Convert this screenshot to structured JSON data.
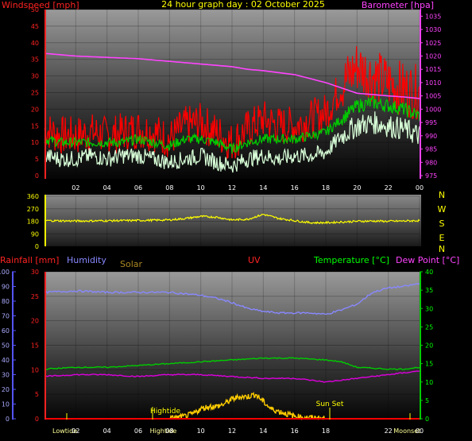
{
  "chart_data": [
    {
      "type": "line",
      "title": "24 hour graph day : 02 October 2025",
      "left_label": "Windspeed [mph]",
      "right_label": "Barometer [hpa]",
      "left_ticks": [
        "0",
        "5",
        "10",
        "15",
        "20",
        "25",
        "30",
        "35",
        "40",
        "45",
        "50"
      ],
      "right_ticks": [
        "975",
        "980",
        "985",
        "990",
        "995",
        "1000",
        "1005",
        "1010",
        "1015",
        "1020",
        "1025",
        "1030",
        "1035"
      ],
      "x_ticks": [
        "02",
        "04",
        "06",
        "08",
        "10",
        "12",
        "14",
        "16",
        "18",
        "20",
        "22",
        "00"
      ],
      "ylim_left": [
        0,
        50
      ],
      "ylim_right": [
        975,
        1037.5
      ],
      "series": [
        {
          "name": "Windspeed [mph]",
          "color": "#ff0000",
          "axis": "left",
          "hours": [
            0,
            1,
            2,
            3,
            4,
            5,
            6,
            7,
            8,
            9,
            10,
            11,
            12,
            13,
            14,
            15,
            16,
            17,
            18,
            19,
            20,
            21,
            22,
            23,
            24
          ],
          "values": [
            14,
            12,
            12,
            13,
            12,
            13,
            14,
            13,
            11,
            15,
            16,
            13,
            10,
            14,
            17,
            15,
            15,
            17,
            19,
            27,
            33,
            30,
            28,
            26,
            25
          ]
        },
        {
          "name": "Windspeed average",
          "color": "#00cc00",
          "axis": "left",
          "hours": [
            0,
            1,
            2,
            3,
            4,
            5,
            6,
            7,
            8,
            9,
            10,
            11,
            12,
            13,
            14,
            15,
            16,
            17,
            18,
            19,
            20,
            21,
            22,
            23,
            24
          ],
          "values": [
            11,
            10,
            10,
            10,
            10,
            10,
            11,
            10,
            9,
            11,
            11,
            10,
            8,
            10,
            11,
            11,
            11,
            12,
            13,
            17,
            21,
            22,
            21,
            20,
            18
          ]
        },
        {
          "name": "Wind gust low",
          "color": "#d8ffd8",
          "axis": "left",
          "hours": [
            0,
            1,
            2,
            3,
            4,
            5,
            6,
            7,
            8,
            9,
            10,
            11,
            12,
            13,
            14,
            15,
            16,
            17,
            18,
            19,
            20,
            21,
            22,
            23,
            24
          ],
          "values": [
            6,
            5,
            5,
            6,
            5,
            6,
            6,
            5,
            4,
            5,
            6,
            4,
            3,
            5,
            6,
            5,
            6,
            6,
            7,
            12,
            15,
            16,
            15,
            14,
            12
          ]
        },
        {
          "name": "Barometer [hpa]",
          "color": "#ff44ff",
          "axis": "right",
          "hours": [
            0,
            2,
            4,
            6,
            8,
            10,
            12,
            13,
            14,
            16,
            18,
            19,
            20,
            21,
            22,
            23,
            24
          ],
          "values": [
            1021,
            1020,
            1019.5,
            1019,
            1018,
            1017,
            1016,
            1015,
            1014.5,
            1013,
            1010,
            1008,
            1006,
            1005.5,
            1005,
            1004.6,
            1004
          ]
        }
      ]
    },
    {
      "type": "line",
      "title": "Wind direction",
      "left_ticks": [
        "0",
        "90",
        "180",
        "270",
        "360"
      ],
      "right_labels": [
        "N",
        "W",
        "S",
        "E",
        "N"
      ],
      "ylim": [
        0,
        360
      ],
      "series": [
        {
          "name": "Wind direction",
          "color": "#ffff00",
          "hours": [
            0,
            2,
            4,
            6,
            8,
            9,
            10,
            11,
            12,
            13,
            14,
            15,
            16,
            17,
            18,
            19,
            20,
            21,
            22,
            23,
            24
          ],
          "values": [
            185,
            182,
            184,
            186,
            190,
            200,
            215,
            210,
            190,
            195,
            230,
            200,
            185,
            170,
            170,
            175,
            180,
            182,
            180,
            182,
            185
          ]
        }
      ]
    },
    {
      "type": "line",
      "title": "",
      "labels": {
        "rainfall": "Rainfall [mm]",
        "humidity": "Humidity",
        "solar": "Solar",
        "uv": "UV",
        "temperature": "Temperature [°C]",
        "dewpoint": "Dew Point [°C]"
      },
      "humidity_ticks": [
        "0",
        "10",
        "20",
        "30",
        "40",
        "50",
        "60",
        "70",
        "80",
        "90",
        "100"
      ],
      "rain_ticks": [
        "0",
        "5",
        "10",
        "15",
        "20",
        "25",
        "30"
      ],
      "temp_ticks": [
        "0",
        "5",
        "10",
        "15",
        "20",
        "25",
        "30",
        "35",
        "40"
      ],
      "x_ticks": [
        "Lowtide",
        "02",
        "04",
        "06",
        "Hightide",
        "08",
        "10",
        "12",
        "14",
        "16",
        "18",
        "22",
        "Moonset",
        "00"
      ],
      "annotations": [
        "Hightide",
        "Sun Set"
      ],
      "series": [
        {
          "name": "Humidity",
          "color": "#8888ff",
          "axis": "humidity",
          "hours": [
            0,
            2,
            4,
            6,
            8,
            10,
            11,
            12,
            13,
            14,
            15,
            16,
            17,
            18,
            19,
            20,
            21,
            22,
            23,
            24
          ],
          "values": [
            86,
            87,
            86,
            86,
            86,
            84,
            82,
            79,
            75,
            73,
            72,
            72,
            72,
            71,
            74,
            78,
            86,
            89,
            90,
            92
          ]
        },
        {
          "name": "Temperature [°C]",
          "color": "#00cc00",
          "axis": "temp",
          "hours": [
            0,
            2,
            4,
            6,
            8,
            10,
            12,
            14,
            16,
            18,
            19,
            20,
            22,
            23,
            24
          ],
          "values": [
            13.5,
            14,
            14,
            14.5,
            15,
            15.5,
            16,
            16.5,
            16.5,
            16,
            15.5,
            14,
            13.5,
            13.5,
            14
          ]
        },
        {
          "name": "Dew Point [°C]",
          "color": "#dd00dd",
          "axis": "temp",
          "hours": [
            0,
            2,
            4,
            6,
            8,
            10,
            12,
            14,
            16,
            17,
            18,
            20,
            22,
            24
          ],
          "values": [
            11.5,
            12,
            12,
            11.5,
            12,
            12,
            11.5,
            11,
            11,
            10.5,
            10,
            11,
            12,
            13
          ]
        },
        {
          "name": "Solar",
          "color": "#ffcc00",
          "axis": "rain",
          "hours": [
            8,
            9,
            9.5,
            10,
            10.5,
            11,
            11.5,
            12,
            12.5,
            13,
            13.5,
            14,
            14.5,
            15,
            15.5,
            16,
            16.5,
            17,
            18
          ],
          "values": [
            0,
            0.5,
            1,
            2,
            2.5,
            2.5,
            3,
            4,
            4.5,
            4.5,
            5,
            3.5,
            2,
            1.5,
            1,
            0.5,
            0.3,
            0.2,
            0
          ]
        },
        {
          "name": "Rainfall [mm]",
          "color": "#ff0000",
          "axis": "rain",
          "hours": [
            0,
            24
          ],
          "values": [
            0,
            0
          ]
        }
      ]
    }
  ]
}
